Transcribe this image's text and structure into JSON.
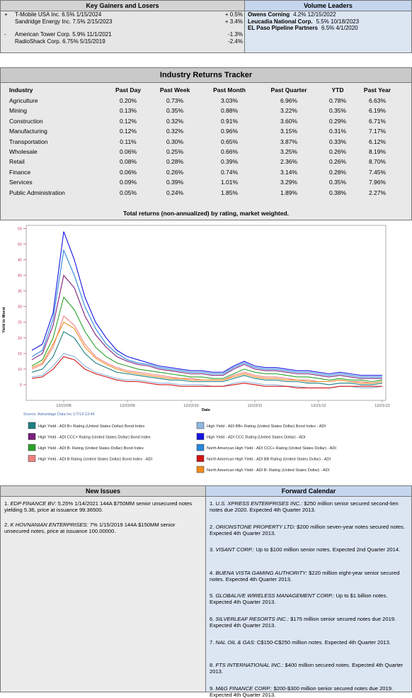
{
  "gainers_losers": {
    "title": "Key Gainers and Losers",
    "groups": [
      {
        "sign": "+",
        "items": [
          {
            "name": "T-Mobile USA Inc. 6.5% 1/15/2024",
            "change": "+ 0.5%"
          },
          {
            "name": "Sandridge Energy Inc. 7.5% 2/15/2023",
            "change": "+ 3.4%"
          }
        ]
      },
      {
        "sign": "-",
        "items": [
          {
            "name": "American Tower Corp. 5.9% 11/1/2021",
            "change": "-1.3%"
          },
          {
            "name": "RadioShack Corp. 6.75% 5/15/2019",
            "change": "-2.4%"
          }
        ]
      }
    ]
  },
  "volume_leaders": {
    "title": "Volume Leaders",
    "items": [
      {
        "name": "Owens Corning",
        "detail": "4.2% 12/15/2022"
      },
      {
        "name": "Leucadia National Corp.",
        "detail": "5.5% 10/18/2023"
      },
      {
        "name": "EL Paso Pipeline Partners",
        "detail": "6.5% 4/1/2020"
      }
    ]
  },
  "industry_returns": {
    "title": "Industry Returns Tracker",
    "columns": [
      "Industry",
      "Past Day",
      "Past Week",
      "Past Month",
      "Past Quarter",
      "YTD",
      "Past Year"
    ],
    "rows": [
      [
        "Agriculture",
        "0.20%",
        "0.73%",
        "3.03%",
        "6.96%",
        "0.78%",
        "6.63%"
      ],
      [
        "Mining",
        "0.13%",
        "0.35%",
        "0.88%",
        "3.22%",
        "0.35%",
        "6.19%"
      ],
      [
        "Construction",
        "0.12%",
        "0.32%",
        "0.91%",
        "3.60%",
        "0.29%",
        "6.71%"
      ],
      [
        "Manufacturing",
        "0.12%",
        "0.32%",
        "0.96%",
        "3.15%",
        "0.31%",
        "7.17%"
      ],
      [
        "Transportation",
        "0.11%",
        "0.30%",
        "0.65%",
        "3.87%",
        "0.33%",
        "6.12%"
      ],
      [
        "Wholesale",
        "0.06%",
        "0.25%",
        "0.66%",
        "3.25%",
        "0.26%",
        "8.19%"
      ],
      [
        "Retail",
        "0.08%",
        "0.28%",
        "0.39%",
        "2.36%",
        "0.26%",
        "8.70%"
      ],
      [
        "Finance",
        "0.06%",
        "0.26%",
        "0.74%",
        "3.14%",
        "0.28%",
        "7.45%"
      ],
      [
        "Services",
        "0.09%",
        "0.39%",
        "1.01%",
        "3.29%",
        "0.35%",
        "7.96%"
      ],
      [
        "Public Administration",
        "0.05%",
        "0.24%",
        "1.85%",
        "1.89%",
        "0.38%",
        "2.27%"
      ]
    ]
  },
  "chart_data": {
    "type": "line",
    "title": "Total returns (non-annualized) by rating, market weighted.",
    "ylabel": "Yield to Worst",
    "xlabel": "Date",
    "source": "Source: Advantage Data Inc 1/7/14 13:44",
    "categories": [
      null,
      null,
      null,
      "12/22/08",
      null,
      null,
      null,
      null,
      null,
      "12/22/09",
      null,
      null,
      null,
      null,
      null,
      "12/22/10",
      null,
      null,
      null,
      null,
      null,
      "12/22/11",
      null,
      null,
      null,
      null,
      null,
      "12/21/12",
      null,
      null,
      null,
      null,
      null,
      "12/21/13"
    ],
    "ylim": [
      0,
      56
    ],
    "yticks": [
      5,
      10,
      15,
      20,
      25,
      30,
      35,
      40,
      45,
      50,
      55
    ],
    "series": [
      {
        "name": "High Yield - ADI B+ Rating (United States Dollar) Bond Index",
        "color": "#1f7f80",
        "values": [
          9,
          10,
          14,
          22,
          20,
          15,
          12,
          10.5,
          9,
          8.5,
          8,
          7.5,
          7,
          6.5,
          6.5,
          6,
          6,
          6,
          6,
          7,
          8,
          7,
          6.5,
          6.5,
          6,
          6,
          5.5,
          5.5,
          5,
          5.5,
          5.5,
          5,
          5,
          5.5
        ]
      },
      {
        "name": "High Yield - ADI CCC+ Rating (United States Dollar) Bond Index",
        "color": "#7b1f7b",
        "values": [
          13,
          15,
          24,
          40,
          36,
          27,
          21,
          17,
          14,
          12.5,
          11.5,
          11,
          10,
          9.5,
          9,
          8.5,
          8.5,
          8,
          8,
          10,
          11.5,
          10,
          9.5,
          9.5,
          9,
          8.5,
          8.5,
          8,
          7.5,
          8,
          7.5,
          7,
          7,
          7
        ]
      },
      {
        "name": "High Yield - ADI B- Rating (United States Dollar) Bond Index",
        "color": "#2ca02c",
        "values": [
          11,
          13,
          20,
          33,
          29,
          22,
          17,
          14,
          12,
          11,
          10,
          9.5,
          9,
          8.5,
          8,
          7.5,
          7.5,
          7,
          7,
          8.5,
          10,
          9,
          8.5,
          8.5,
          8,
          7.5,
          7.5,
          7,
          6.5,
          7,
          6.5,
          6.5,
          6,
          6.5
        ]
      },
      {
        "name": "High Yield - ADI B Rating (United States Dollar) Bond Index - ADI",
        "color": "#f08080",
        "values": [
          10,
          11.5,
          17,
          27,
          24,
          18,
          14,
          12,
          10.5,
          9.5,
          9,
          8.5,
          8,
          7.5,
          7,
          7,
          6.5,
          6.5,
          6.5,
          8,
          9,
          8,
          7.5,
          7.5,
          7,
          6.5,
          6.5,
          6,
          6,
          6.5,
          6,
          6,
          5.5,
          6
        ]
      },
      {
        "name": "High Yield - ADI BB+ Rating (United States Dollar) Bond Index - ADI",
        "color": "#8fb8e0",
        "values": [
          7.5,
          8,
          11,
          15,
          14,
          11,
          9,
          8,
          7,
          6.5,
          6.5,
          6,
          5.5,
          5.5,
          5,
          5,
          5,
          4.5,
          4.5,
          5.5,
          6,
          5.5,
          5,
          5,
          4.5,
          4.5,
          4,
          4,
          4,
          4.5,
          4.5,
          4,
          4,
          4.5
        ]
      },
      {
        "name": "High Yield - ADI CCC Rating (United States Dollar) - ADI",
        "color": "#1414e0",
        "values": [
          16,
          18,
          28,
          54,
          45,
          33,
          25,
          20,
          16,
          14,
          13,
          12,
          11,
          10.5,
          10,
          9.5,
          9.5,
          9,
          9,
          11,
          12.5,
          11,
          10.5,
          10.5,
          10,
          9.5,
          9.5,
          9,
          8.5,
          9,
          8.5,
          8,
          8,
          8
        ]
      },
      {
        "name": "North American High Yield - ADI CCC+ Rating (United States Dollar) - ADI",
        "color": "#2a86d8",
        "values": [
          14,
          16,
          26,
          48,
          40,
          30,
          23,
          18,
          15,
          13,
          12,
          11.5,
          10.5,
          10,
          9.5,
          9,
          9,
          8.5,
          8.5,
          10.5,
          12,
          10.5,
          10,
          10,
          9.5,
          9,
          9,
          8.5,
          8,
          8.5,
          8,
          7.5,
          7.5,
          7.5
        ]
      },
      {
        "name": "North American High Yield - ADI BB Rating (United States Dollar) - ADI",
        "color": "#d01414",
        "values": [
          7,
          7.5,
          10,
          14,
          13,
          10,
          8.5,
          7.5,
          6.5,
          6,
          6,
          5.5,
          5,
          5,
          4.5,
          4.5,
          4.5,
          4.5,
          4.5,
          5,
          5.5,
          5,
          4.5,
          4.5,
          4.5,
          4,
          4,
          4,
          4,
          4.5,
          4.5,
          4.5,
          4.5,
          4.5
        ]
      },
      {
        "name": "North American High Yield - ADI B- Rating (United States Dollar) - ADI",
        "color": "#f08c20",
        "values": [
          10.5,
          12,
          18,
          25,
          23,
          17,
          13.5,
          11.5,
          10,
          9,
          8.5,
          8,
          7.5,
          7,
          7,
          6.5,
          6.5,
          6.5,
          6.5,
          7.5,
          8.5,
          7.5,
          7,
          7,
          6.5,
          6.5,
          6,
          6,
          6,
          6.5,
          6,
          5.5,
          5.5,
          6
        ]
      }
    ]
  },
  "new_issues": {
    "title": "New Issues",
    "items": [
      {
        "number": "1.",
        "issuer": "EDP FINANCE BV:",
        "text": "5.25% 1/14/2021 144A $750MM senior unsecured notes yielding 5.36, price at issuance 99.36500."
      },
      {
        "number": "2.",
        "issuer": "K HOVNANIAN ENTERPRISES:",
        "text": "7% 1/15/2019 144A $150MM senior unsecured notes, price at issuance 100.00000."
      }
    ]
  },
  "forward_calendar": {
    "title": "Forward Calendar",
    "items": [
      {
        "number": "1.",
        "issuer": "U.S. XPRESS ENTERPRISES INC.:",
        "text": "$250 million senior secured second-lien notes due 2020. Expected 4th Quarter 2013."
      },
      {
        "number": "2.",
        "issuer": "ORIONSTONE PROPERTY LTD:",
        "text": "$200 million seven-year notes secured notes. Expected 4th Quarter 2013."
      },
      {
        "number": "3.",
        "issuer": "VISANT CORP.:",
        "text": "Up to $100 million senior notes. Expected 2nd Quarter 2014."
      },
      {
        "number": "4.",
        "issuer": "BUENA VISTA GAMING AUTHORITY:",
        "text": "$220 million eight-year senior secured notes. Expected 4th Quarter 2013."
      },
      {
        "number": "5.",
        "issuer": "GLOBALIVE WIRELESS MANAGEMENT CORP.:",
        "text": "Up to $1 billion notes. Expected 4th Quarter 2013."
      },
      {
        "number": "6.",
        "issuer": "SILVERLEAF RESORTS INC.:",
        "text": "$175 million senior secured notes due 2019. Expected 4th Quarter 2013."
      },
      {
        "number": "7.",
        "issuer": "NAL OIL & GAS:",
        "text": "C$150-C$250 million notes. Expected 4th Quarter 2013."
      },
      {
        "number": "8.",
        "issuer": "FTS INTERNATIONAL INC.:",
        "text": "$400 million secured notes. Expected 4th Quarter 2013."
      },
      {
        "number": "9.",
        "issuer": "M&G FINANCE CORP.:",
        "text": "$200-$300 million senior secured notes due 2019. Expected 4th Quarter 2013."
      }
    ]
  }
}
